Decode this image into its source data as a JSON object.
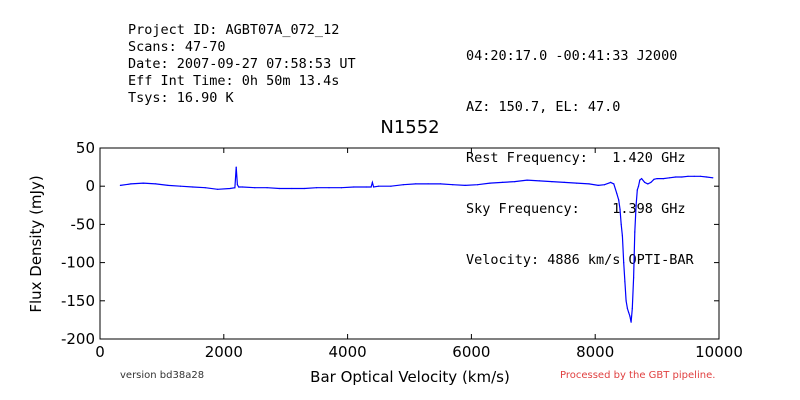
{
  "header": {
    "left": [
      "Project ID: AGBT07A_072_12",
      "Scans: 47-70",
      "Date: 2007-09-27 07:58:53 UT",
      "Eff Int Time: 0h 50m 13.4s",
      "Tsys: 16.90 K"
    ],
    "right": [
      "04:20:17.0 -00:41:33 J2000",
      "AZ: 150.7, EL: 47.0",
      "Rest Frequency:   1.420 GHz",
      "Sky Frequency:    1.398 GHz",
      "Velocity: 4886 km/s OPTI-BAR"
    ]
  },
  "footer": {
    "version": "version bd38a28",
    "pipeline": "Processed by the GBT pipeline.",
    "pipeline_color": "#e04040"
  },
  "chart_data": {
    "type": "line",
    "title": "N1552",
    "xlabel": "Bar Optical Velocity (km/s)",
    "ylabel": "Flux Density (mJy)",
    "xlim": [
      0,
      10000
    ],
    "ylim": [
      -200,
      50
    ],
    "xticks": [
      0,
      2000,
      4000,
      6000,
      8000,
      10000
    ],
    "yticks": [
      50,
      0,
      -50,
      -100,
      -150,
      -200
    ],
    "grid": false,
    "line_color": "#0000ff",
    "series": [
      {
        "x": [
          330,
          500,
          700,
          900,
          1100,
          1300,
          1500,
          1700,
          1900,
          2100,
          2180,
          2200,
          2220,
          2240,
          2260,
          2300,
          2500,
          2700,
          2900,
          3100,
          3300,
          3500,
          3700,
          3900,
          4100,
          4300,
          4380,
          4400,
          4420,
          4500,
          4700,
          4900,
          5100,
          5300,
          5500,
          5700,
          5900,
          6100,
          6300,
          6500,
          6700,
          6900,
          7100,
          7300,
          7500,
          7700,
          7900,
          8050,
          8150,
          8250,
          8300,
          8350,
          8380,
          8400,
          8420,
          8440,
          8460,
          8480,
          8500,
          8520,
          8540,
          8560,
          8580,
          8600,
          8620,
          8640,
          8660,
          8680,
          8700,
          8720,
          8750,
          8800,
          8850,
          8900,
          8950,
          9000,
          9100,
          9200,
          9300,
          9400,
          9500,
          9600,
          9700,
          9800,
          9900
        ],
        "y": [
          1,
          3,
          4,
          3,
          1,
          0,
          -1,
          -2,
          -4,
          -3,
          -2,
          25,
          2,
          -1,
          -1,
          -1,
          -2,
          -2,
          -3,
          -3,
          -3,
          -2,
          -2,
          -2,
          -1,
          -1,
          -1,
          5,
          -1,
          0,
          0,
          2,
          3,
          3,
          3,
          2,
          1,
          2,
          4,
          5,
          6,
          8,
          7,
          6,
          5,
          4,
          3,
          1,
          2,
          5,
          3,
          -10,
          -18,
          -30,
          -50,
          -65,
          -100,
          -125,
          -150,
          -160,
          -165,
          -170,
          -178,
          -160,
          -120,
          -60,
          -25,
          -5,
          0,
          8,
          10,
          5,
          3,
          5,
          9,
          10,
          10,
          11,
          12,
          12,
          13,
          13,
          13,
          12,
          11
        ]
      }
    ]
  }
}
